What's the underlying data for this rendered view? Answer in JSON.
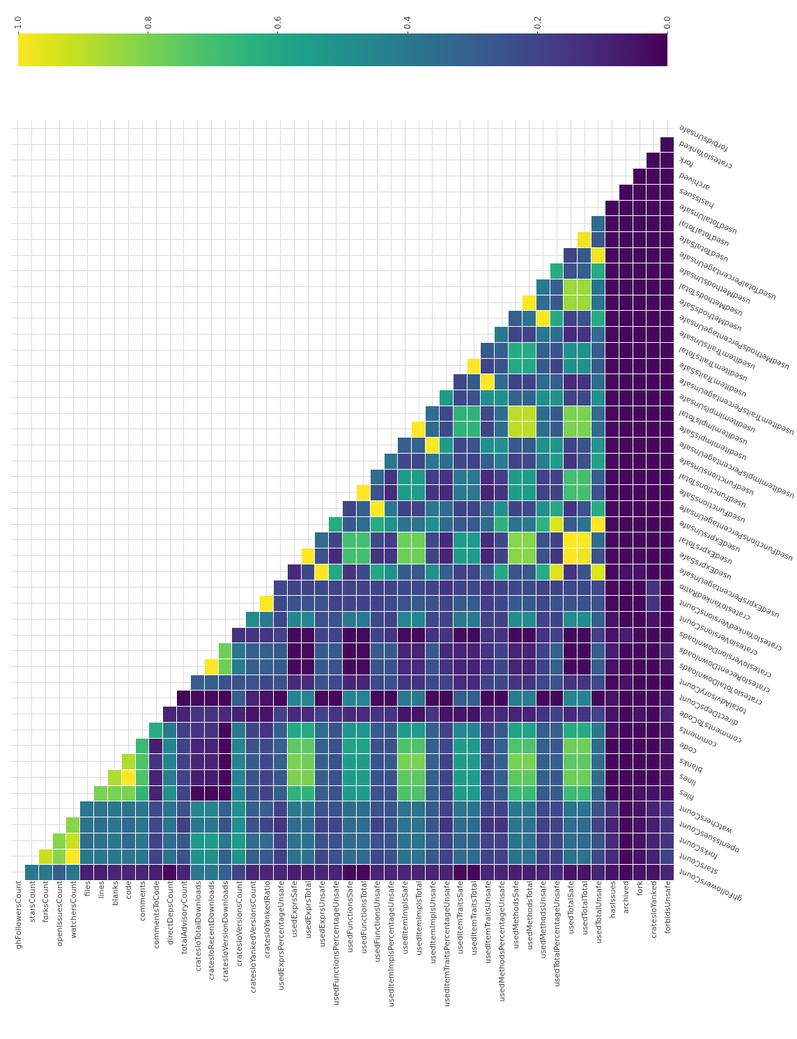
{
  "chart_data": {
    "type": "heatmap",
    "categories": [
      "ghFollowersCount",
      "starsCount",
      "forksCount",
      "openIssuesCount",
      "watchersCount",
      "files",
      "lines",
      "blanks",
      "code",
      "comments",
      "commentsToCode",
      "directDepsCount",
      "totalAdvisoryCount",
      "cratesIoTotalDownloads",
      "cratesIoRecentDownloads",
      "cratesIoVersionDownloads",
      "cratesIoVersionsCount",
      "cratesIoYankedVersionsCount",
      "cratesIoYankedRatio",
      "usedExprsPercentageUnsafe",
      "usedExprsSafe",
      "usedExprsTotal",
      "usedExprsUnsafe",
      "usedFunctionsPercentageUnsafe",
      "usedFunctionsSafe",
      "usedFunctionsTotal",
      "usedFunctionsUnsafe",
      "usedItemImplsPercentageUnsafe",
      "usedItemImplsSafe",
      "usedItemImplsTotal",
      "usedItemImplsUnsafe",
      "usedItemTraitsPercentageUnsafe",
      "usedItemTraitsSafe",
      "usedItemTraitsTotal",
      "usedItemTraitsUnsafe",
      "usedMethodsPercentageUnsafe",
      "usedMethodsSafe",
      "usedMethodsTotal",
      "usedMethodsUnsafe",
      "usedTotalPercentageUnsafe",
      "usedTotalSafe",
      "usedTotalTotal",
      "usedTotalUnsafe",
      "hasIssues",
      "archived",
      "fork",
      "cratesIoYanked",
      "forbidsUnsafe"
    ],
    "y_categories": [
      "forbidsUnsafe",
      "cratesIoYanked",
      "fork",
      "archived",
      "hasIssues",
      "usedTotalUnsafe",
      "usedTotalTotal",
      "usedTotalSafe",
      "usedTotalPercentageUnsafe",
      "usedMethodsUnsafe",
      "usedMethodsTotal",
      "usedMethodsSafe",
      "usedMethodsPercentageUnsafe",
      "usedItemTraitsUnsafe",
      "usedItemTraitsTotal",
      "usedItemTraitsSafe",
      "usedItemTraitsPercentageUnsafe",
      "usedItemImplsUnsafe",
      "usedItemImplsTotal",
      "usedItemImplsSafe",
      "usedItemImplsPercentageUnsafe",
      "usedFunctionsUnsafe",
      "usedFunctionsTotal",
      "usedFunctionsSafe",
      "usedFunctionsPercentageUnsafe",
      "usedExprsUnsafe",
      "usedExprsTotal",
      "usedExprsSafe",
      "usedExprsPercentageUnsafe",
      "cratesIoYankedRatio",
      "cratesIoYankedVersionsCount",
      "cratesIoVersionsCount",
      "cratesIoVersionDownloads",
      "cratesIoRecentDownloads",
      "cratesIoTotalDownloads",
      "totalAdvisoryCount",
      "directDepsCount",
      "commentsToCode",
      "comments",
      "code",
      "blanks",
      "lines",
      "files",
      "watchersCount",
      "openIssuesCount",
      "forksCount",
      "starsCount",
      "ghFollowersCount"
    ],
    "cells": [
      [
        null,
        null,
        null,
        null,
        null,
        null,
        null,
        null,
        null,
        null,
        null,
        null,
        null,
        null,
        null,
        null,
        null,
        null,
        null,
        null,
        null,
        null,
        null,
        null,
        null,
        null,
        null,
        null,
        null,
        null,
        null,
        null,
        null,
        null,
        null,
        null,
        null,
        null,
        null,
        null,
        null,
        null,
        null,
        null,
        null,
        null,
        null,
        null
      ],
      [
        null,
        null,
        null,
        null,
        null,
        null,
        null,
        null,
        null,
        null,
        null,
        null,
        null,
        null,
        null,
        null,
        null,
        null,
        null,
        null,
        null,
        null,
        null,
        null,
        null,
        null,
        null,
        null,
        null,
        null,
        null,
        null,
        null,
        null,
        null,
        null,
        null,
        null,
        null,
        null,
        null,
        null,
        null,
        null,
        null,
        null,
        null,
        0.02
      ],
      [
        null,
        null,
        null,
        null,
        null,
        null,
        null,
        null,
        null,
        null,
        null,
        null,
        null,
        null,
        null,
        null,
        null,
        null,
        null,
        null,
        null,
        null,
        null,
        null,
        null,
        null,
        null,
        null,
        null,
        null,
        null,
        null,
        null,
        null,
        null,
        null,
        null,
        null,
        null,
        null,
        null,
        null,
        null,
        null,
        null,
        null,
        0.02,
        0.02
      ],
      [
        null,
        null,
        null,
        null,
        null,
        null,
        null,
        null,
        null,
        null,
        null,
        null,
        null,
        null,
        null,
        null,
        null,
        null,
        null,
        null,
        null,
        null,
        null,
        null,
        null,
        null,
        null,
        null,
        null,
        null,
        null,
        null,
        null,
        null,
        null,
        null,
        null,
        null,
        null,
        null,
        null,
        null,
        null,
        null,
        null,
        0.02,
        0.02,
        0.02
      ],
      [
        null,
        null,
        null,
        null,
        null,
        null,
        null,
        null,
        null,
        null,
        null,
        null,
        null,
        null,
        null,
        null,
        null,
        null,
        null,
        null,
        null,
        null,
        null,
        null,
        null,
        null,
        null,
        null,
        null,
        null,
        null,
        null,
        null,
        null,
        null,
        null,
        null,
        null,
        null,
        null,
        null,
        null,
        null,
        null,
        0.02,
        0.02,
        0.02,
        0.02
      ],
      [
        null,
        null,
        null,
        null,
        null,
        null,
        null,
        null,
        null,
        null,
        null,
        null,
        null,
        null,
        null,
        null,
        null,
        null,
        null,
        null,
        null,
        null,
        null,
        null,
        null,
        null,
        null,
        null,
        null,
        null,
        null,
        null,
        null,
        null,
        null,
        null,
        null,
        null,
        null,
        null,
        null,
        null,
        null,
        0.02,
        0.02,
        0.02,
        0.02,
        0.02
      ],
      [
        null,
        null,
        null,
        null,
        null,
        null,
        null,
        null,
        null,
        null,
        null,
        null,
        null,
        null,
        null,
        null,
        null,
        null,
        null,
        null,
        null,
        null,
        null,
        null,
        null,
        null,
        null,
        null,
        null,
        null,
        null,
        null,
        null,
        null,
        null,
        null,
        null,
        null,
        null,
        null,
        null,
        null,
        0.35,
        0.02,
        0.02,
        0.02,
        0.02,
        0.02
      ],
      [
        null,
        null,
        null,
        null,
        null,
        null,
        null,
        null,
        null,
        null,
        null,
        null,
        null,
        null,
        null,
        null,
        null,
        null,
        null,
        null,
        null,
        null,
        null,
        null,
        null,
        null,
        null,
        null,
        null,
        null,
        null,
        null,
        null,
        null,
        null,
        null,
        null,
        null,
        null,
        null,
        null,
        0.98,
        0.28,
        0.02,
        0.02,
        0.02,
        0.02,
        0.02
      ],
      [
        null,
        null,
        null,
        null,
        null,
        null,
        null,
        null,
        null,
        null,
        null,
        null,
        null,
        null,
        null,
        null,
        null,
        null,
        null,
        null,
        null,
        null,
        null,
        null,
        null,
        null,
        null,
        null,
        null,
        null,
        null,
        null,
        null,
        null,
        null,
        null,
        null,
        null,
        null,
        null,
        0.2,
        0.28,
        0.98,
        0.02,
        0.02,
        0.02,
        0.02,
        0.02
      ],
      [
        null,
        null,
        null,
        null,
        null,
        null,
        null,
        null,
        null,
        null,
        null,
        null,
        null,
        null,
        null,
        null,
        null,
        null,
        null,
        null,
        null,
        null,
        null,
        null,
        null,
        null,
        null,
        null,
        null,
        null,
        null,
        null,
        null,
        null,
        null,
        null,
        null,
        null,
        null,
        0.62,
        0.25,
        0.3,
        0.62,
        0.02,
        0.02,
        0.02,
        0.02,
        0.02
      ],
      [
        null,
        null,
        null,
        null,
        null,
        null,
        null,
        null,
        null,
        null,
        null,
        null,
        null,
        null,
        null,
        null,
        null,
        null,
        null,
        null,
        null,
        null,
        null,
        null,
        null,
        null,
        null,
        null,
        null,
        null,
        null,
        null,
        null,
        null,
        null,
        null,
        null,
        null,
        0.4,
        0.3,
        0.85,
        0.85,
        0.38,
        0.02,
        0.02,
        0.02,
        0.02,
        0.02
      ],
      [
        null,
        null,
        null,
        null,
        null,
        null,
        null,
        null,
        null,
        null,
        null,
        null,
        null,
        null,
        null,
        null,
        null,
        null,
        null,
        null,
        null,
        null,
        null,
        null,
        null,
        null,
        null,
        null,
        null,
        null,
        null,
        null,
        null,
        null,
        null,
        null,
        null,
        1.0,
        0.35,
        0.28,
        0.85,
        0.85,
        0.38,
        0.02,
        0.02,
        0.02,
        0.02,
        0.02
      ],
      [
        null,
        null,
        null,
        null,
        null,
        null,
        null,
        null,
        null,
        null,
        null,
        null,
        null,
        null,
        null,
        null,
        null,
        null,
        null,
        null,
        null,
        null,
        null,
        null,
        null,
        null,
        null,
        null,
        null,
        null,
        null,
        null,
        null,
        null,
        null,
        null,
        0.3,
        0.38,
        1.0,
        0.6,
        0.2,
        0.25,
        0.62,
        0.02,
        0.02,
        0.02,
        0.02,
        0.02
      ],
      [
        null,
        null,
        null,
        null,
        null,
        null,
        null,
        null,
        null,
        null,
        null,
        null,
        null,
        null,
        null,
        null,
        null,
        null,
        null,
        null,
        null,
        null,
        null,
        null,
        null,
        null,
        null,
        null,
        null,
        null,
        null,
        null,
        null,
        null,
        null,
        0.4,
        0.2,
        0.2,
        0.4,
        0.35,
        0.12,
        0.15,
        0.35,
        0.02,
        0.02,
        0.02,
        0.02,
        0.02
      ],
      [
        null,
        null,
        null,
        null,
        null,
        null,
        null,
        null,
        null,
        null,
        null,
        null,
        null,
        null,
        null,
        null,
        null,
        null,
        null,
        null,
        null,
        null,
        null,
        null,
        null,
        null,
        null,
        null,
        null,
        null,
        null,
        null,
        null,
        null,
        0.28,
        0.3,
        0.62,
        0.62,
        0.3,
        0.25,
        0.5,
        0.5,
        0.3,
        0.02,
        0.02,
        0.02,
        0.02,
        0.02
      ],
      [
        null,
        null,
        null,
        null,
        null,
        null,
        null,
        null,
        null,
        null,
        null,
        null,
        null,
        null,
        null,
        null,
        null,
        null,
        null,
        null,
        null,
        null,
        null,
        null,
        null,
        null,
        null,
        null,
        null,
        null,
        null,
        null,
        null,
        1.0,
        0.2,
        0.25,
        0.6,
        0.6,
        0.28,
        0.2,
        0.5,
        0.5,
        0.28,
        0.02,
        0.02,
        0.02,
        0.02,
        0.02
      ],
      [
        null,
        null,
        null,
        null,
        null,
        null,
        null,
        null,
        null,
        null,
        null,
        null,
        null,
        null,
        null,
        null,
        null,
        null,
        null,
        null,
        null,
        null,
        null,
        null,
        null,
        null,
        null,
        null,
        null,
        null,
        null,
        null,
        0.22,
        0.28,
        1.0,
        0.35,
        0.2,
        0.2,
        0.35,
        0.3,
        0.12,
        0.15,
        0.35,
        0.02,
        0.02,
        0.02,
        0.02,
        0.02
      ],
      [
        null,
        null,
        null,
        null,
        null,
        null,
        null,
        null,
        null,
        null,
        null,
        null,
        null,
        null,
        null,
        null,
        null,
        null,
        null,
        null,
        null,
        null,
        null,
        null,
        null,
        null,
        null,
        null,
        null,
        null,
        null,
        0.55,
        0.22,
        0.25,
        0.5,
        0.5,
        0.32,
        0.32,
        0.5,
        0.5,
        0.2,
        0.22,
        0.5,
        0.02,
        0.02,
        0.02,
        0.02,
        0.02
      ],
      [
        null,
        null,
        null,
        null,
        null,
        null,
        null,
        null,
        null,
        null,
        null,
        null,
        null,
        null,
        null,
        null,
        null,
        null,
        null,
        null,
        null,
        null,
        null,
        null,
        null,
        null,
        null,
        null,
        null,
        null,
        0.35,
        0.22,
        0.65,
        0.65,
        0.22,
        0.35,
        0.9,
        0.9,
        0.35,
        0.28,
        0.8,
        0.8,
        0.35,
        0.02,
        0.02,
        0.02,
        0.02,
        0.02
      ],
      [
        null,
        null,
        null,
        null,
        null,
        null,
        null,
        null,
        null,
        null,
        null,
        null,
        null,
        null,
        null,
        null,
        null,
        null,
        null,
        null,
        null,
        null,
        null,
        null,
        null,
        null,
        null,
        null,
        null,
        1.0,
        0.35,
        0.22,
        0.65,
        0.65,
        0.2,
        0.35,
        0.9,
        0.9,
        0.35,
        0.28,
        0.8,
        0.8,
        0.35,
        0.02,
        0.02,
        0.02,
        0.02,
        0.02
      ],
      [
        null,
        null,
        null,
        null,
        null,
        null,
        null,
        null,
        null,
        null,
        null,
        null,
        null,
        null,
        null,
        null,
        null,
        null,
        null,
        null,
        null,
        null,
        null,
        null,
        null,
        null,
        null,
        null,
        0.3,
        0.32,
        1.0,
        0.55,
        0.22,
        0.25,
        0.5,
        0.5,
        0.28,
        0.28,
        0.5,
        0.52,
        0.2,
        0.25,
        0.52,
        0.02,
        0.02,
        0.02,
        0.02,
        0.02
      ],
      [
        null,
        null,
        null,
        null,
        null,
        null,
        null,
        null,
        null,
        null,
        null,
        null,
        null,
        null,
        null,
        null,
        null,
        null,
        null,
        null,
        null,
        null,
        null,
        null,
        null,
        null,
        null,
        0.4,
        0.22,
        0.22,
        0.4,
        0.35,
        0.22,
        0.2,
        0.3,
        0.42,
        0.2,
        0.22,
        0.42,
        0.55,
        0.15,
        0.25,
        0.58,
        0.02,
        0.02,
        0.02,
        0.02,
        0.02
      ],
      [
        null,
        null,
        null,
        null,
        null,
        null,
        null,
        null,
        null,
        null,
        null,
        null,
        null,
        null,
        null,
        null,
        null,
        null,
        null,
        null,
        null,
        null,
        null,
        null,
        null,
        null,
        0.35,
        0.15,
        0.55,
        0.55,
        0.18,
        0.15,
        0.4,
        0.4,
        0.12,
        0.18,
        0.55,
        0.55,
        0.2,
        0.2,
        0.7,
        0.7,
        0.3,
        0.02,
        0.02,
        0.02,
        0.02,
        0.02
      ],
      [
        null,
        null,
        null,
        null,
        null,
        null,
        null,
        null,
        null,
        null,
        null,
        null,
        null,
        null,
        null,
        null,
        null,
        null,
        null,
        null,
        null,
        null,
        null,
        null,
        null,
        1.0,
        0.25,
        0.12,
        0.55,
        0.55,
        0.15,
        0.12,
        0.4,
        0.4,
        0.1,
        0.15,
        0.55,
        0.55,
        0.2,
        0.2,
        0.7,
        0.7,
        0.25,
        0.02,
        0.02,
        0.02,
        0.02,
        0.02
      ],
      [
        null,
        null,
        null,
        null,
        null,
        null,
        null,
        null,
        null,
        null,
        null,
        null,
        null,
        null,
        null,
        null,
        null,
        null,
        null,
        null,
        null,
        null,
        null,
        null,
        0.2,
        0.3,
        1.0,
        0.4,
        0.2,
        0.2,
        0.4,
        0.35,
        0.2,
        0.2,
        0.3,
        0.5,
        0.2,
        0.22,
        0.5,
        0.6,
        0.15,
        0.25,
        0.62,
        0.02,
        0.02,
        0.02,
        0.02,
        0.02
      ],
      [
        null,
        null,
        null,
        null,
        null,
        null,
        null,
        null,
        null,
        null,
        null,
        null,
        null,
        null,
        null,
        null,
        null,
        null,
        null,
        null,
        null,
        null,
        null,
        0.62,
        0.28,
        0.35,
        0.62,
        0.5,
        0.38,
        0.38,
        0.5,
        0.35,
        0.28,
        0.28,
        0.35,
        0.65,
        0.38,
        0.4,
        0.65,
        0.95,
        0.28,
        0.38,
        1.0,
        0.02,
        0.02,
        0.02,
        0.02,
        0.02
      ],
      [
        null,
        null,
        null,
        null,
        null,
        null,
        null,
        null,
        null,
        null,
        null,
        null,
        null,
        null,
        null,
        null,
        null,
        null,
        null,
        null,
        null,
        null,
        0.35,
        0.2,
        0.7,
        0.7,
        0.22,
        0.18,
        0.78,
        0.78,
        0.22,
        0.12,
        0.55,
        0.55,
        0.12,
        0.22,
        0.82,
        0.82,
        0.25,
        0.2,
        1.0,
        1.0,
        0.35,
        0.02,
        0.02,
        0.02,
        0.02,
        0.02
      ],
      [
        null,
        null,
        null,
        null,
        null,
        null,
        null,
        null,
        null,
        null,
        null,
        null,
        null,
        null,
        null,
        null,
        null,
        null,
        null,
        null,
        null,
        1.0,
        0.25,
        0.12,
        0.7,
        0.7,
        0.15,
        0.15,
        0.78,
        0.78,
        0.2,
        0.1,
        0.55,
        0.55,
        0.1,
        0.2,
        0.82,
        0.82,
        0.25,
        0.15,
        1.0,
        0.98,
        0.25,
        0.02,
        0.02,
        0.02,
        0.02,
        0.02
      ],
      [
        null,
        null,
        null,
        null,
        null,
        null,
        null,
        null,
        null,
        null,
        null,
        null,
        null,
        null,
        null,
        null,
        null,
        null,
        null,
        null,
        0.12,
        0.22,
        1.0,
        0.6,
        0.15,
        0.22,
        0.6,
        0.5,
        0.28,
        0.28,
        0.5,
        0.3,
        0.2,
        0.22,
        0.3,
        0.6,
        0.25,
        0.28,
        0.62,
        0.95,
        0.15,
        0.25,
        0.95,
        0.02,
        0.05,
        0.05,
        0.02,
        0.02
      ],
      [
        null,
        null,
        null,
        null,
        null,
        null,
        null,
        null,
        null,
        null,
        null,
        null,
        null,
        null,
        null,
        null,
        null,
        null,
        null,
        0.22,
        0.2,
        0.2,
        0.22,
        0.2,
        0.2,
        0.2,
        0.2,
        0.2,
        0.22,
        0.22,
        0.2,
        0.15,
        0.2,
        0.22,
        0.15,
        0.2,
        0.22,
        0.22,
        0.2,
        0.2,
        0.22,
        0.22,
        0.22,
        0.02,
        0.02,
        0.02,
        0.15,
        0.02
      ],
      [
        null,
        null,
        null,
        null,
        null,
        null,
        null,
        null,
        null,
        null,
        null,
        null,
        null,
        null,
        null,
        null,
        null,
        null,
        1.0,
        0.22,
        0.25,
        0.25,
        0.25,
        0.2,
        0.2,
        0.2,
        0.2,
        0.22,
        0.25,
        0.28,
        0.25,
        0.2,
        0.28,
        0.28,
        0.18,
        0.22,
        0.28,
        0.28,
        0.22,
        0.25,
        0.25,
        0.25,
        0.25,
        0.02,
        0.02,
        0.02,
        0.15,
        0.02
      ],
      [
        null,
        null,
        null,
        null,
        null,
        null,
        null,
        null,
        null,
        null,
        null,
        null,
        null,
        null,
        null,
        null,
        null,
        0.48,
        0.4,
        0.22,
        0.45,
        0.45,
        0.25,
        0.25,
        0.4,
        0.4,
        0.22,
        0.2,
        0.45,
        0.45,
        0.22,
        0.2,
        0.4,
        0.4,
        0.2,
        0.2,
        0.48,
        0.48,
        0.2,
        0.2,
        0.48,
        0.48,
        0.3,
        0.05,
        0.02,
        0.02,
        0.05,
        0.02
      ],
      [
        null,
        null,
        null,
        null,
        null,
        null,
        null,
        null,
        null,
        null,
        null,
        null,
        null,
        null,
        null,
        null,
        0.15,
        0.15,
        0.15,
        0.2,
        0.02,
        0.02,
        0.2,
        0.2,
        0.02,
        0.02,
        0.2,
        0.15,
        0.02,
        0.02,
        0.15,
        0.15,
        0.02,
        0.02,
        0.15,
        0.15,
        0.02,
        0.02,
        0.15,
        0.2,
        0.02,
        0.02,
        0.18,
        0.05,
        0.08,
        0.02,
        0.02,
        0.02
      ],
      [
        null,
        null,
        null,
        null,
        null,
        null,
        null,
        null,
        null,
        null,
        null,
        null,
        null,
        null,
        null,
        0.78,
        0.4,
        0.3,
        0.3,
        0.28,
        0.02,
        0.02,
        0.28,
        0.28,
        0.02,
        0.02,
        0.28,
        0.28,
        0.1,
        0.1,
        0.28,
        0.12,
        0.1,
        0.1,
        0.15,
        0.2,
        0.1,
        0.1,
        0.2,
        0.3,
        0.02,
        0.02,
        0.3,
        0.08,
        0.02,
        0.02,
        0.02,
        0.08
      ],
      [
        null,
        null,
        null,
        null,
        null,
        null,
        null,
        null,
        null,
        null,
        null,
        null,
        null,
        null,
        1.0,
        0.78,
        0.42,
        0.3,
        0.3,
        0.28,
        0.02,
        0.02,
        0.28,
        0.25,
        0.02,
        0.02,
        0.25,
        0.25,
        0.12,
        0.12,
        0.25,
        0.15,
        0.1,
        0.1,
        0.15,
        0.22,
        0.1,
        0.1,
        0.2,
        0.3,
        0.02,
        0.02,
        0.3,
        0.05,
        0.02,
        0.02,
        0.02,
        0.05
      ],
      [
        null,
        null,
        null,
        null,
        null,
        null,
        null,
        null,
        null,
        null,
        null,
        null,
        null,
        0.3,
        0.3,
        0.25,
        0.25,
        0.25,
        0.22,
        0.25,
        0.12,
        0.12,
        0.25,
        0.22,
        0.1,
        0.1,
        0.22,
        0.25,
        0.15,
        0.15,
        0.22,
        0.2,
        0.12,
        0.12,
        0.2,
        0.22,
        0.15,
        0.15,
        0.22,
        0.25,
        0.15,
        0.15,
        0.22,
        0.02,
        0.05,
        0.02,
        0.02,
        0.02
      ],
      [
        null,
        null,
        null,
        null,
        null,
        null,
        null,
        null,
        null,
        null,
        null,
        null,
        0.02,
        0.02,
        0.02,
        0.02,
        0.3,
        0.1,
        0.05,
        0.02,
        0.45,
        0.45,
        0.02,
        0.02,
        0.45,
        0.45,
        0.02,
        0.02,
        0.4,
        0.4,
        0.02,
        0.02,
        0.3,
        0.3,
        0.02,
        0.02,
        0.42,
        0.42,
        0.02,
        0.02,
        0.45,
        0.45,
        0.02,
        0.05,
        0.02,
        0.02,
        0.02,
        0.05
      ],
      [
        null,
        null,
        null,
        null,
        null,
        null,
        null,
        null,
        null,
        null,
        null,
        0.1,
        0.1,
        0.15,
        0.15,
        0.12,
        0.1,
        0.05,
        0.05,
        0.2,
        0.12,
        0.12,
        0.2,
        0.15,
        0.12,
        0.12,
        0.15,
        0.15,
        0.05,
        0.05,
        0.15,
        0.05,
        0.05,
        0.05,
        0.1,
        0.12,
        0.1,
        0.1,
        0.15,
        0.2,
        0.12,
        0.15,
        0.2,
        0.05,
        0.02,
        0.05,
        0.02,
        0.1
      ],
      [
        null,
        null,
        null,
        null,
        null,
        null,
        null,
        null,
        null,
        null,
        0.62,
        0.4,
        0.18,
        0.15,
        0.15,
        0.02,
        0.4,
        0.2,
        0.15,
        0.3,
        0.6,
        0.6,
        0.35,
        0.25,
        0.52,
        0.52,
        0.28,
        0.28,
        0.55,
        0.55,
        0.3,
        0.2,
        0.45,
        0.45,
        0.2,
        0.28,
        0.58,
        0.58,
        0.3,
        0.3,
        0.62,
        0.62,
        0.4,
        0.05,
        0.02,
        0.02,
        0.02,
        0.05
      ],
      [
        null,
        null,
        null,
        null,
        null,
        null,
        null,
        null,
        null,
        0.68,
        0.08,
        0.45,
        0.2,
        0.1,
        0.1,
        0.02,
        0.45,
        0.25,
        0.22,
        0.3,
        0.75,
        0.75,
        0.3,
        0.25,
        0.58,
        0.58,
        0.25,
        0.25,
        0.72,
        0.72,
        0.3,
        0.22,
        0.55,
        0.55,
        0.2,
        0.3,
        0.72,
        0.72,
        0.3,
        0.28,
        0.78,
        0.78,
        0.35,
        0.02,
        0.02,
        0.02,
        0.02,
        0.05
      ],
      [
        null,
        null,
        null,
        null,
        null,
        null,
        null,
        null,
        0.88,
        0.72,
        0.15,
        0.45,
        0.2,
        0.1,
        0.1,
        0.02,
        0.45,
        0.28,
        0.22,
        0.3,
        0.8,
        0.78,
        0.3,
        0.25,
        0.55,
        0.55,
        0.25,
        0.28,
        0.8,
        0.8,
        0.3,
        0.2,
        0.55,
        0.55,
        0.22,
        0.3,
        0.8,
        0.8,
        0.3,
        0.3,
        0.75,
        0.75,
        0.35,
        0.02,
        0.02,
        0.02,
        0.02,
        0.05
      ],
      [
        null,
        null,
        null,
        null,
        null,
        null,
        null,
        0.88,
        1.0,
        0.72,
        0.1,
        0.42,
        0.2,
        0.08,
        0.08,
        0.02,
        0.45,
        0.25,
        0.2,
        0.28,
        0.8,
        0.8,
        0.3,
        0.25,
        0.55,
        0.55,
        0.25,
        0.25,
        0.75,
        0.75,
        0.3,
        0.2,
        0.55,
        0.55,
        0.2,
        0.3,
        0.75,
        0.75,
        0.3,
        0.28,
        0.78,
        0.78,
        0.35,
        0.02,
        0.02,
        0.02,
        0.02,
        0.05
      ],
      [
        null,
        null,
        null,
        null,
        null,
        null,
        0.8,
        0.8,
        0.8,
        0.65,
        0.1,
        0.5,
        0.2,
        0.02,
        0.02,
        0.02,
        0.45,
        0.25,
        0.2,
        0.3,
        0.65,
        0.65,
        0.3,
        0.25,
        0.55,
        0.55,
        0.25,
        0.25,
        0.72,
        0.72,
        0.3,
        0.2,
        0.55,
        0.55,
        0.22,
        0.28,
        0.68,
        0.68,
        0.28,
        0.28,
        0.68,
        0.68,
        0.32,
        0.02,
        0.02,
        0.05,
        0.05,
        0.05
      ],
      [
        null,
        null,
        null,
        null,
        null,
        0.4,
        0.38,
        0.4,
        0.38,
        0.4,
        0.22,
        0.38,
        0.25,
        0.45,
        0.45,
        0.3,
        0.5,
        0.3,
        0.3,
        0.2,
        0.4,
        0.4,
        0.25,
        0.25,
        0.35,
        0.35,
        0.25,
        0.25,
        0.38,
        0.38,
        0.28,
        0.2,
        0.38,
        0.38,
        0.2,
        0.2,
        0.4,
        0.4,
        0.22,
        0.22,
        0.38,
        0.38,
        0.25,
        0.15,
        0.02,
        0.05,
        0.1,
        0.15
      ],
      [
        null,
        null,
        null,
        null,
        0.82,
        0.38,
        0.35,
        0.38,
        0.35,
        0.4,
        0.22,
        0.38,
        0.18,
        0.4,
        0.4,
        0.25,
        0.5,
        0.25,
        0.2,
        0.15,
        0.35,
        0.35,
        0.2,
        0.2,
        0.35,
        0.35,
        0.2,
        0.25,
        0.38,
        0.38,
        0.25,
        0.15,
        0.35,
        0.35,
        0.15,
        0.15,
        0.38,
        0.38,
        0.2,
        0.2,
        0.35,
        0.35,
        0.2,
        0.1,
        0.02,
        0.05,
        0.08,
        0.15
      ],
      [
        null,
        null,
        null,
        0.82,
        0.92,
        0.35,
        0.38,
        0.4,
        0.35,
        0.4,
        0.2,
        0.35,
        0.28,
        0.55,
        0.55,
        0.4,
        0.55,
        0.35,
        0.35,
        0.2,
        0.38,
        0.38,
        0.25,
        0.25,
        0.35,
        0.35,
        0.25,
        0.25,
        0.38,
        0.38,
        0.3,
        0.2,
        0.32,
        0.32,
        0.2,
        0.2,
        0.38,
        0.38,
        0.2,
        0.22,
        0.35,
        0.35,
        0.25,
        0.12,
        0.02,
        0.05,
        0.1,
        0.15
      ],
      [
        null,
        null,
        0.92,
        0.82,
        1.0,
        0.4,
        0.4,
        0.4,
        0.4,
        0.4,
        0.2,
        0.38,
        0.25,
        0.5,
        0.5,
        0.3,
        0.52,
        0.3,
        0.28,
        0.2,
        0.38,
        0.38,
        0.22,
        0.25,
        0.35,
        0.35,
        0.22,
        0.25,
        0.38,
        0.38,
        0.28,
        0.2,
        0.35,
        0.35,
        0.2,
        0.2,
        0.38,
        0.38,
        0.2,
        0.2,
        0.38,
        0.38,
        0.22,
        0.12,
        0.02,
        0.05,
        0.1,
        0.2
      ],
      [
        null,
        0.4,
        0.4,
        0.3,
        0.4,
        0.08,
        0.08,
        0.1,
        0.1,
        0.1,
        0.08,
        0.02,
        0.1,
        0.4,
        0.4,
        0.3,
        0.2,
        0.1,
        0.1,
        0.1,
        0.08,
        0.08,
        0.1,
        0.1,
        0.02,
        0.02,
        0.1,
        0.1,
        0.1,
        0.1,
        0.1,
        0.1,
        0.02,
        0.02,
        0.1,
        0.1,
        0.08,
        0.08,
        0.1,
        0.12,
        0.05,
        0.05,
        0.1,
        0.05,
        0.02,
        0.05,
        0.05,
        0.1
      ]
    ],
    "clim": [
      0,
      1
    ],
    "cticks": [
      {
        "value": 0,
        "label": "0.0"
      },
      {
        "value": 0.2,
        "label": "0.2"
      },
      {
        "value": 0.4,
        "label": "0.4"
      },
      {
        "value": 0.6,
        "label": "0.6"
      },
      {
        "value": 0.8,
        "label": "0.8"
      },
      {
        "value": 1,
        "label": "1.0"
      }
    ],
    "grid": true
  }
}
